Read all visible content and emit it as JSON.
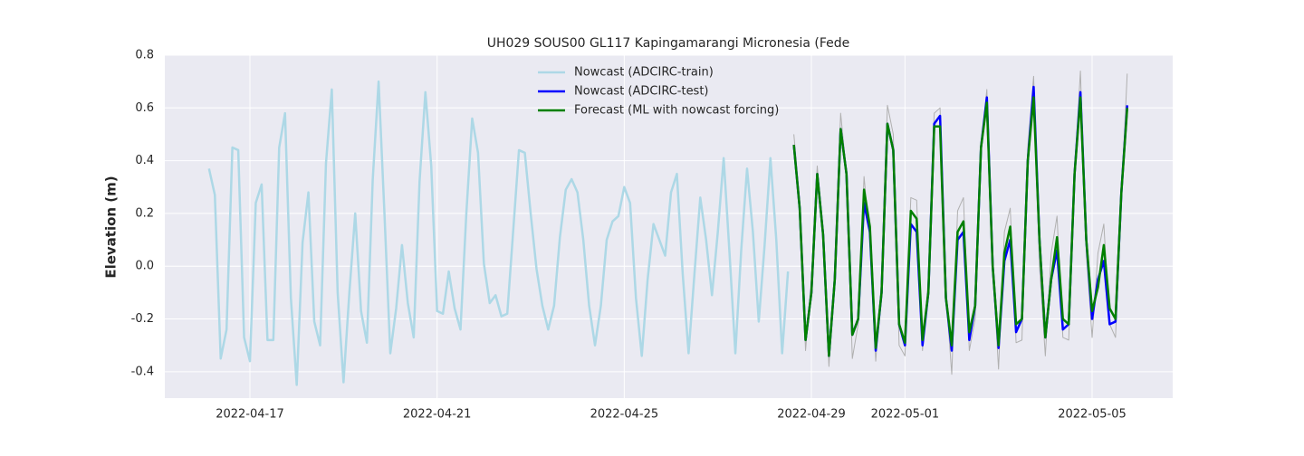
{
  "chart_data": {
    "type": "line",
    "title": "UH029 SOUS00 GL117 Kapingamarangi Micronesia (Fede",
    "y_label": "Elevation (m)",
    "x": [
      "2022-04-16T03:00",
      "2022-04-16T06:00",
      "2022-04-16T09:00",
      "2022-04-16T12:00",
      "2022-04-16T15:00",
      "2022-04-16T18:00",
      "2022-04-16T21:00",
      "2022-04-17T00:00",
      "2022-04-17T03:00",
      "2022-04-17T06:00",
      "2022-04-17T09:00",
      "2022-04-17T12:00",
      "2022-04-17T15:00",
      "2022-04-17T18:00",
      "2022-04-17T21:00",
      "2022-04-18T00:00",
      "2022-04-18T03:00",
      "2022-04-18T06:00",
      "2022-04-18T09:00",
      "2022-04-18T12:00",
      "2022-04-18T15:00",
      "2022-04-18T18:00",
      "2022-04-18T21:00",
      "2022-04-19T00:00",
      "2022-04-19T03:00",
      "2022-04-19T06:00",
      "2022-04-19T09:00",
      "2022-04-19T12:00",
      "2022-04-19T15:00",
      "2022-04-19T18:00",
      "2022-04-19T21:00",
      "2022-04-20T00:00",
      "2022-04-20T03:00",
      "2022-04-20T06:00",
      "2022-04-20T09:00",
      "2022-04-20T12:00",
      "2022-04-20T15:00",
      "2022-04-20T18:00",
      "2022-04-20T21:00",
      "2022-04-21T00:00",
      "2022-04-21T03:00",
      "2022-04-21T06:00",
      "2022-04-21T09:00",
      "2022-04-21T12:00",
      "2022-04-21T15:00",
      "2022-04-21T18:00",
      "2022-04-21T21:00",
      "2022-04-22T00:00",
      "2022-04-22T03:00",
      "2022-04-22T06:00",
      "2022-04-22T09:00",
      "2022-04-22T12:00",
      "2022-04-22T15:00",
      "2022-04-22T18:00",
      "2022-04-22T21:00",
      "2022-04-23T00:00",
      "2022-04-23T03:00",
      "2022-04-23T06:00",
      "2022-04-23T09:00",
      "2022-04-23T12:00",
      "2022-04-23T15:00",
      "2022-04-23T18:00",
      "2022-04-23T21:00",
      "2022-04-24T00:00",
      "2022-04-24T03:00",
      "2022-04-24T06:00",
      "2022-04-24T09:00",
      "2022-04-24T12:00",
      "2022-04-24T15:00",
      "2022-04-24T18:00",
      "2022-04-24T21:00",
      "2022-04-25T00:00",
      "2022-04-25T03:00",
      "2022-04-25T06:00",
      "2022-04-25T09:00",
      "2022-04-25T12:00",
      "2022-04-25T15:00",
      "2022-04-25T18:00",
      "2022-04-25T21:00",
      "2022-04-26T00:00",
      "2022-04-26T03:00",
      "2022-04-26T06:00",
      "2022-04-26T09:00",
      "2022-04-26T12:00",
      "2022-04-26T15:00",
      "2022-04-26T18:00",
      "2022-04-26T21:00",
      "2022-04-27T00:00",
      "2022-04-27T03:00",
      "2022-04-27T06:00",
      "2022-04-27T09:00",
      "2022-04-27T12:00",
      "2022-04-27T15:00",
      "2022-04-27T18:00",
      "2022-04-27T21:00",
      "2022-04-28T00:00",
      "2022-04-28T03:00",
      "2022-04-28T06:00",
      "2022-04-28T09:00",
      "2022-04-28T12:00",
      "2022-04-28T15:00",
      "2022-04-28T18:00",
      "2022-04-28T21:00",
      "2022-04-29T00:00",
      "2022-04-29T03:00",
      "2022-04-29T06:00",
      "2022-04-29T09:00",
      "2022-04-29T12:00",
      "2022-04-29T15:00",
      "2022-04-29T18:00",
      "2022-04-29T21:00",
      "2022-04-30T00:00",
      "2022-04-30T03:00",
      "2022-04-30T06:00",
      "2022-04-30T09:00",
      "2022-04-30T12:00",
      "2022-04-30T15:00",
      "2022-04-30T18:00",
      "2022-04-30T21:00",
      "2022-05-01T00:00",
      "2022-05-01T03:00",
      "2022-05-01T06:00",
      "2022-05-01T09:00",
      "2022-05-01T12:00",
      "2022-05-01T15:00",
      "2022-05-01T18:00",
      "2022-05-01T21:00",
      "2022-05-02T00:00",
      "2022-05-02T03:00",
      "2022-05-02T06:00",
      "2022-05-02T09:00",
      "2022-05-02T12:00",
      "2022-05-02T15:00",
      "2022-05-02T18:00",
      "2022-05-02T21:00",
      "2022-05-03T00:00",
      "2022-05-03T03:00",
      "2022-05-03T06:00",
      "2022-05-03T09:00",
      "2022-05-03T12:00",
      "2022-05-03T15:00",
      "2022-05-03T18:00",
      "2022-05-03T21:00",
      "2022-05-04T00:00",
      "2022-05-04T03:00",
      "2022-05-04T06:00",
      "2022-05-04T09:00",
      "2022-05-04T12:00",
      "2022-05-04T15:00",
      "2022-05-04T18:00",
      "2022-05-04T21:00",
      "2022-05-05T00:00",
      "2022-05-05T03:00",
      "2022-05-05T06:00",
      "2022-05-05T09:00",
      "2022-05-05T12:00",
      "2022-05-05T15:00",
      "2022-05-05T18:00"
    ],
    "series": [
      {
        "name": "Nowcast (ADCIRC-train)",
        "color": "#add8e6",
        "width": 2.5,
        "values": [
          0.37,
          0.27,
          -0.35,
          -0.24,
          0.45,
          0.44,
          -0.27,
          -0.36,
          0.24,
          0.31,
          -0.28,
          -0.28,
          0.45,
          0.58,
          -0.12,
          -0.45,
          0.09,
          0.28,
          -0.21,
          -0.3,
          0.39,
          0.67,
          -0.1,
          -0.44,
          -0.1,
          0.2,
          -0.17,
          -0.29,
          0.33,
          0.7,
          0.2,
          -0.33,
          -0.16,
          0.08,
          -0.14,
          -0.27,
          0.32,
          0.66,
          0.38,
          -0.17,
          -0.18,
          -0.02,
          -0.16,
          -0.24,
          0.2,
          0.56,
          0.43,
          0.01,
          -0.14,
          -0.11,
          -0.19,
          -0.18,
          0.13,
          0.44,
          0.43,
          0.2,
          -0.01,
          -0.15,
          -0.24,
          -0.15,
          0.11,
          0.29,
          0.33,
          0.28,
          0.1,
          -0.15,
          -0.3,
          -0.15,
          0.1,
          0.17,
          0.19,
          0.3,
          0.24,
          -0.12,
          -0.34,
          -0.05,
          0.16,
          0.1,
          0.04,
          0.28,
          0.35,
          -0.03,
          -0.33,
          -0.03,
          0.26,
          0.1,
          -0.11,
          0.13,
          0.41,
          0.05,
          -0.33,
          0.06,
          0.37,
          0.13,
          -0.21,
          0.08,
          0.41,
          0.1,
          -0.33,
          -0.02,
          null,
          null,
          null,
          null,
          null,
          null,
          null,
          null,
          null,
          null,
          null,
          null,
          null,
          null,
          null,
          null,
          null,
          null,
          null,
          null,
          null,
          null,
          null,
          null,
          null,
          null,
          null,
          null,
          null,
          null,
          null,
          null,
          null,
          null,
          null,
          null,
          null,
          null,
          null,
          null,
          null,
          null,
          null,
          null,
          null,
          null,
          null,
          null,
          null,
          null,
          null,
          null,
          null,
          null,
          null,
          null,
          null,
          null
        ]
      },
      {
        "color": "#b0b0b0",
        "width": 1,
        "values": [
          null,
          null,
          null,
          null,
          null,
          null,
          null,
          null,
          null,
          null,
          null,
          null,
          null,
          null,
          null,
          null,
          null,
          null,
          null,
          null,
          null,
          null,
          null,
          null,
          null,
          null,
          null,
          null,
          null,
          null,
          null,
          null,
          null,
          null,
          null,
          null,
          null,
          null,
          null,
          null,
          null,
          null,
          null,
          null,
          null,
          null,
          null,
          null,
          null,
          null,
          null,
          null,
          null,
          null,
          null,
          null,
          null,
          null,
          null,
          null,
          null,
          null,
          null,
          null,
          null,
          null,
          null,
          null,
          null,
          null,
          null,
          null,
          null,
          null,
          null,
          null,
          null,
          null,
          null,
          null,
          null,
          null,
          null,
          null,
          null,
          null,
          null,
          null,
          null,
          null,
          null,
          null,
          null,
          null,
          null,
          null,
          null,
          null,
          null,
          null,
          0.5,
          0.25,
          -0.32,
          -0.05,
          0.38,
          0.1,
          -0.38,
          0.0,
          0.58,
          0.35,
          -0.35,
          -0.22,
          0.34,
          0.1,
          -0.36,
          -0.05,
          0.61,
          0.5,
          -0.3,
          -0.34,
          0.26,
          0.25,
          -0.32,
          -0.05,
          0.58,
          0.6,
          -0.1,
          -0.41,
          0.21,
          0.26,
          -0.32,
          -0.2,
          0.45,
          0.67,
          0.0,
          -0.39,
          0.13,
          0.22,
          -0.29,
          -0.28,
          0.45,
          0.72,
          0.0,
          -0.34,
          0.05,
          0.19,
          -0.27,
          -0.28,
          0.35,
          0.74,
          0.05,
          -0.27,
          0.05,
          0.16,
          -0.22,
          -0.27,
          0.25,
          0.73
        ]
      },
      {
        "name": "Nowcast (ADCIRC-test)",
        "color": "#0000ff",
        "width": 2.5,
        "values": [
          null,
          null,
          null,
          null,
          null,
          null,
          null,
          null,
          null,
          null,
          null,
          null,
          null,
          null,
          null,
          null,
          null,
          null,
          null,
          null,
          null,
          null,
          null,
          null,
          null,
          null,
          null,
          null,
          null,
          null,
          null,
          null,
          null,
          null,
          null,
          null,
          null,
          null,
          null,
          null,
          null,
          null,
          null,
          null,
          null,
          null,
          null,
          null,
          null,
          null,
          null,
          null,
          null,
          null,
          null,
          null,
          null,
          null,
          null,
          null,
          null,
          null,
          null,
          null,
          null,
          null,
          null,
          null,
          null,
          null,
          null,
          null,
          null,
          null,
          null,
          null,
          null,
          null,
          null,
          null,
          null,
          null,
          null,
          null,
          null,
          null,
          null,
          null,
          null,
          null,
          null,
          null,
          null,
          null,
          null,
          null,
          null,
          null,
          null,
          null,
          0.46,
          0.22,
          -0.28,
          -0.1,
          0.35,
          0.12,
          -0.34,
          -0.05,
          0.52,
          0.35,
          -0.26,
          -0.2,
          0.24,
          0.13,
          -0.32,
          -0.1,
          0.54,
          0.44,
          -0.22,
          -0.3,
          0.16,
          0.13,
          -0.3,
          -0.1,
          0.54,
          0.57,
          -0.12,
          -0.32,
          0.1,
          0.13,
          -0.28,
          -0.15,
          0.45,
          0.64,
          0.0,
          -0.31,
          0.02,
          0.1,
          -0.25,
          -0.2,
          0.4,
          0.68,
          0.1,
          -0.27,
          -0.05,
          0.06,
          -0.24,
          -0.22,
          0.35,
          0.66,
          0.1,
          -0.2,
          -0.05,
          0.02,
          -0.22,
          -0.21,
          0.28,
          0.61
        ]
      },
      {
        "name": "Forecast (ML with nowcast forcing)",
        "color": "#008000",
        "width": 2.5,
        "values": [
          null,
          null,
          null,
          null,
          null,
          null,
          null,
          null,
          null,
          null,
          null,
          null,
          null,
          null,
          null,
          null,
          null,
          null,
          null,
          null,
          null,
          null,
          null,
          null,
          null,
          null,
          null,
          null,
          null,
          null,
          null,
          null,
          null,
          null,
          null,
          null,
          null,
          null,
          null,
          null,
          null,
          null,
          null,
          null,
          null,
          null,
          null,
          null,
          null,
          null,
          null,
          null,
          null,
          null,
          null,
          null,
          null,
          null,
          null,
          null,
          null,
          null,
          null,
          null,
          null,
          null,
          null,
          null,
          null,
          null,
          null,
          null,
          null,
          null,
          null,
          null,
          null,
          null,
          null,
          null,
          null,
          null,
          null,
          null,
          null,
          null,
          null,
          null,
          null,
          null,
          null,
          null,
          null,
          null,
          null,
          null,
          null,
          null,
          null,
          null,
          0.46,
          0.22,
          -0.28,
          -0.1,
          0.35,
          0.12,
          -0.34,
          -0.05,
          0.52,
          0.35,
          -0.26,
          -0.2,
          0.29,
          0.15,
          -0.31,
          -0.1,
          0.54,
          0.44,
          -0.22,
          -0.29,
          0.21,
          0.18,
          -0.28,
          -0.1,
          0.53,
          0.53,
          -0.12,
          -0.3,
          0.13,
          0.17,
          -0.25,
          -0.15,
          0.45,
          0.62,
          0.0,
          -0.3,
          0.05,
          0.15,
          -0.22,
          -0.2,
          0.4,
          0.64,
          0.1,
          -0.27,
          -0.05,
          0.11,
          -0.2,
          -0.22,
          0.35,
          0.64,
          0.1,
          -0.17,
          -0.08,
          0.08,
          -0.16,
          -0.2,
          0.28,
          0.6
        ]
      }
    ],
    "xlim": [
      "2022-04-15T04:20",
      "2022-05-06T17:20"
    ],
    "xticks": [
      "2022-04-17",
      "2022-04-21",
      "2022-04-25",
      "2022-04-29",
      "2022-05-01",
      "2022-05-05"
    ],
    "ylim": [
      -0.5,
      0.8
    ],
    "yticks": [
      -0.4,
      -0.2,
      {
        "value": 0,
        "label": "0.0"
      },
      0.2,
      0.4,
      0.6,
      0.8
    ],
    "grid": true,
    "legend": "upper center"
  }
}
